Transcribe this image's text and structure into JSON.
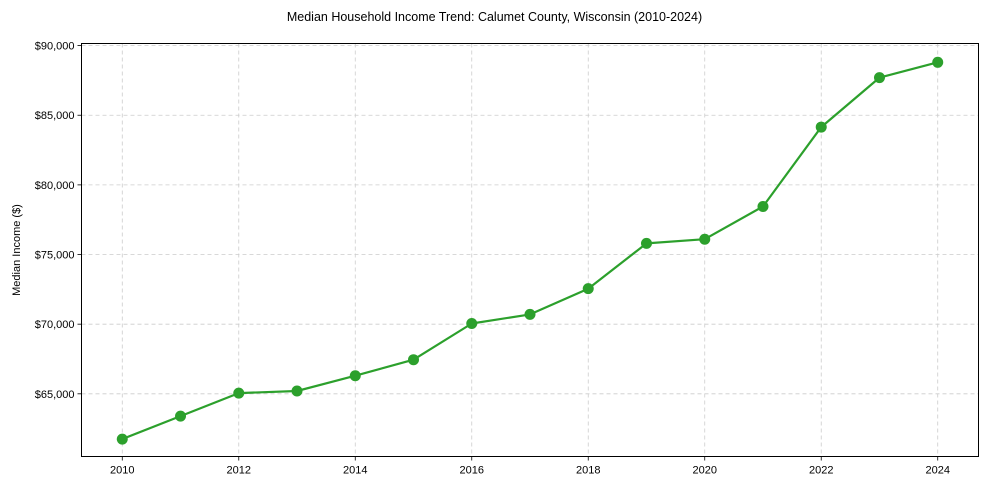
{
  "chart_data": {
    "type": "line",
    "title": "Median Household Income Trend: Calumet County, Wisconsin (2010-2024)",
    "xlabel": "",
    "ylabel": "Median Income ($)",
    "x": [
      2010,
      2011,
      2012,
      2013,
      2014,
      2015,
      2016,
      2017,
      2018,
      2019,
      2020,
      2021,
      2022,
      2023,
      2024
    ],
    "series": [
      {
        "name": "Median Household Income",
        "color": "#2ca02c",
        "values": [
          61750,
          63400,
          65050,
          65200,
          66300,
          67450,
          70050,
          70700,
          72550,
          75800,
          76100,
          78450,
          84150,
          87700,
          88800
        ]
      }
    ],
    "xticks": [
      2010,
      2012,
      2014,
      2016,
      2018,
      2020,
      2022,
      2024
    ],
    "xtick_labels": [
      "2010",
      "2012",
      "2014",
      "2016",
      "2018",
      "2020",
      "2022",
      "2024"
    ],
    "yticks": [
      65000,
      70000,
      75000,
      80000,
      85000,
      90000
    ],
    "ytick_labels": [
      "$65,000",
      "$70,000",
      "$75,000",
      "$80,000",
      "$85,000",
      "$90,000"
    ],
    "xlim": [
      2009.3,
      2024.7
    ],
    "ylim": [
      60500,
      90150
    ],
    "grid": true,
    "grid_style": "dashed",
    "legend": null,
    "marker": "circle"
  }
}
